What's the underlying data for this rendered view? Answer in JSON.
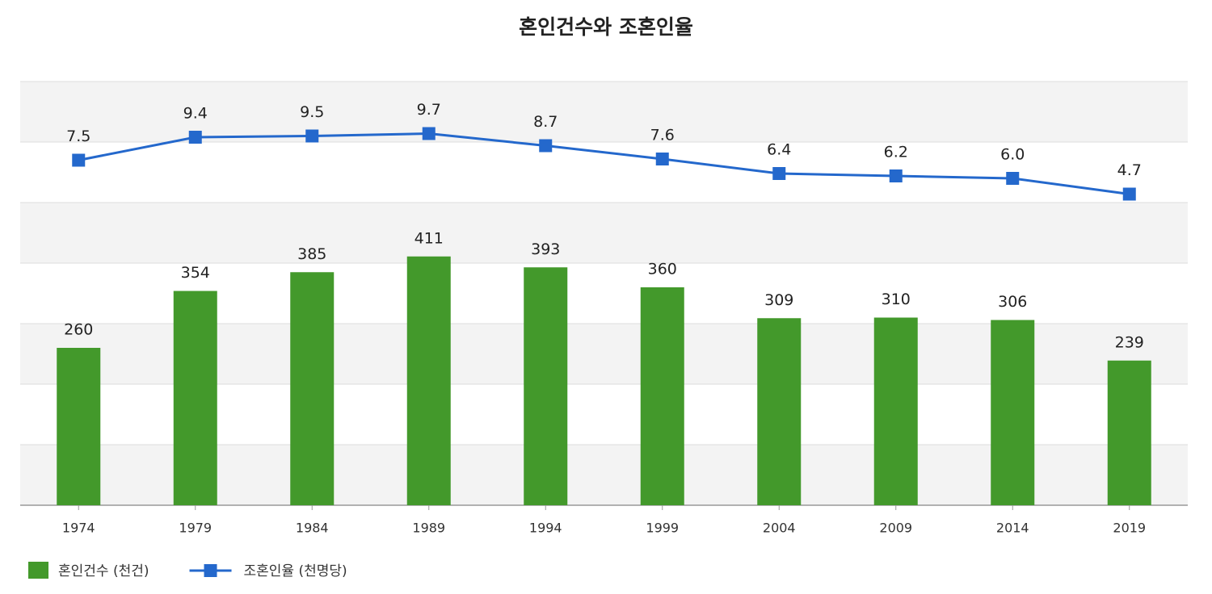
{
  "chart_data": {
    "type": "bar-line",
    "title": "혼인건수와 조혼인율",
    "categories": [
      "1974",
      "1979",
      "1984",
      "1989",
      "1994",
      "1999",
      "2004",
      "2009",
      "2014",
      "2019"
    ],
    "series": [
      {
        "name": "혼인건수 (천건)",
        "type": "bar",
        "color": "#43992b",
        "values": [
          260,
          354,
          385,
          411,
          393,
          360,
          309,
          310,
          306,
          239
        ]
      },
      {
        "name": "조혼인율 (천명당)",
        "type": "line",
        "axis": "y2",
        "color": "#2468cc",
        "values": [
          7.5,
          9.4,
          9.5,
          9.7,
          8.7,
          7.6,
          6.4,
          6.2,
          6.0,
          4.7
        ],
        "value_labels": [
          "7.5",
          "9.4",
          "9.5",
          "9.7",
          "8.7",
          "7.6",
          "6.4",
          "6.2",
          "6.0",
          "4.7"
        ]
      }
    ],
    "ylim": [
      0,
      700
    ],
    "yticks": [
      0,
      100,
      200,
      300,
      400,
      500,
      600,
      700
    ],
    "y2lim": [
      -21,
      14
    ],
    "grid": true,
    "legend": "bottom-left"
  }
}
